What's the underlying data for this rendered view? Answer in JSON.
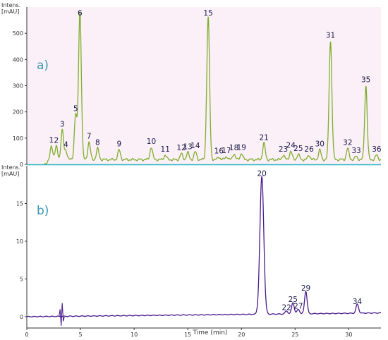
{
  "chart_data": [
    {
      "type": "line",
      "panel_label": "a)",
      "ylabel": [
        "Intens.",
        "[mAU]"
      ],
      "ylim": [
        0,
        600
      ],
      "yticks": [
        0,
        100,
        200,
        300,
        400,
        500
      ],
      "grid": false,
      "baseline": 18,
      "color": "#7fae2d",
      "background": "#fbf0f7",
      "peaks": [
        {
          "label": "1",
          "x": 2.3,
          "y": 70
        },
        {
          "label": "2",
          "x": 2.75,
          "y": 68
        },
        {
          "label": "3",
          "x": 3.3,
          "y": 130
        },
        {
          "label": "4",
          "x": 3.65,
          "y": 52
        },
        {
          "label": "5",
          "x": 4.55,
          "y": 190
        },
        {
          "label": "6",
          "x": 4.95,
          "y": 580
        },
        {
          "label": "7",
          "x": 5.8,
          "y": 85
        },
        {
          "label": "8",
          "x": 6.6,
          "y": 60
        },
        {
          "label": "9",
          "x": 8.6,
          "y": 55
        },
        {
          "label": "10",
          "x": 11.6,
          "y": 65
        },
        {
          "label": "11",
          "x": 12.9,
          "y": 35
        },
        {
          "label": "12",
          "x": 14.4,
          "y": 40
        },
        {
          "label": "13",
          "x": 15.0,
          "y": 45
        },
        {
          "label": "14",
          "x": 15.7,
          "y": 48
        },
        {
          "label": "15",
          "x": 16.9,
          "y": 560
        },
        {
          "label": "16",
          "x": 17.9,
          "y": 28
        },
        {
          "label": "17",
          "x": 18.6,
          "y": 30
        },
        {
          "label": "18",
          "x": 19.3,
          "y": 40
        },
        {
          "label": "19",
          "x": 20.0,
          "y": 42
        },
        {
          "label": "21",
          "x": 22.1,
          "y": 80
        },
        {
          "label": "23",
          "x": 23.9,
          "y": 35
        },
        {
          "label": "24",
          "x": 24.6,
          "y": 50
        },
        {
          "label": "25",
          "x": 25.3,
          "y": 38
        },
        {
          "label": "26",
          "x": 26.3,
          "y": 35
        },
        {
          "label": "30",
          "x": 27.3,
          "y": 55
        },
        {
          "label": "31",
          "x": 28.3,
          "y": 470
        },
        {
          "label": "32",
          "x": 29.9,
          "y": 60
        },
        {
          "label": "33",
          "x": 30.7,
          "y": 30
        },
        {
          "label": "35",
          "x": 31.6,
          "y": 300
        },
        {
          "label": "36",
          "x": 32.6,
          "y": 35
        }
      ]
    },
    {
      "type": "line",
      "panel_label": "b)",
      "ylabel": [
        "Intens.",
        "[mAU]"
      ],
      "xlabel": "Time (min)",
      "xlim": [
        0,
        33
      ],
      "xticks": [
        0,
        5,
        10,
        15,
        20,
        25,
        30
      ],
      "ylim": [
        -1.5,
        20
      ],
      "yticks": [
        0,
        5,
        10,
        15
      ],
      "grid": false,
      "baseline": 0.0,
      "color": "#4a1a8c",
      "background": "#ffffff",
      "peaks": [
        {
          "label": "20",
          "x": 21.9,
          "y": 18.2
        },
        {
          "label": "22",
          "x": 24.2,
          "y": 0.4
        },
        {
          "label": "25",
          "x": 24.8,
          "y": 1.5
        },
        {
          "label": "27",
          "x": 25.3,
          "y": 0.6
        },
        {
          "label": "29",
          "x": 26.0,
          "y": 3.0
        },
        {
          "label": "34",
          "x": 30.8,
          "y": 1.2
        }
      ]
    }
  ]
}
